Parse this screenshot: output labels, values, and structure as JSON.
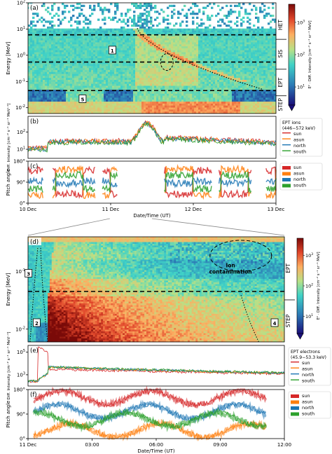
{
  "chart_data": [
    {
      "panel": "(a)",
      "type": "heatmap",
      "xlabel": "",
      "ylabel": "Energy [MeV]",
      "y_scale": "log",
      "ylim": [
        0.006,
        100
      ],
      "yticks": [
        "10^{-2}",
        "10^{-1}",
        "10^{0}",
        "10^{1}",
        "10^{2}"
      ],
      "instruments": [
        "HET",
        "SIS",
        "EPT",
        "STEP"
      ],
      "colorbar": {
        "label": "E² · Diff. Intensity [cm⁻² s⁻¹ sr⁻¹ MeV]",
        "ticks": [
          "10^{1}",
          "10^{2}",
          "10^{3}"
        ],
        "scale": "log"
      },
      "dashed_lines_MeV": [
        6.0,
        0.55,
        0.045
      ],
      "annotations": [
        "1",
        "5"
      ]
    },
    {
      "panel": "(b)",
      "type": "line",
      "ylabel": "Diff. Intensity [cm⁻² s⁻¹ sr⁻¹ MeV⁻¹]",
      "y_scale": "log",
      "ylim": [
        3,
        800
      ],
      "yticks": [
        "10^{1}",
        "10^{2}"
      ],
      "legend_title": [
        "EPT ions",
        "(446−572 keV)"
      ],
      "legend_position": "right",
      "series": [
        {
          "name": "sun",
          "color": "#d62728"
        },
        {
          "name": "asun",
          "color": "#ff7f0e"
        },
        {
          "name": "north",
          "color": "#1f77b4"
        },
        {
          "name": "south",
          "color": "#2ca02c"
        }
      ]
    },
    {
      "panel": "(c)",
      "type": "line",
      "ylabel": "Pitch angle",
      "ylim": [
        0,
        180
      ],
      "yticks": [
        "0°",
        "90°",
        "180°"
      ],
      "xlabel": "Date/Time (UT)",
      "xticks": [
        "10 Dec",
        "11 Dec",
        "12 Dec",
        "13 Dec"
      ],
      "series": [
        {
          "name": "sun",
          "color": "#d62728"
        },
        {
          "name": "asun",
          "color": "#ff7f0e"
        },
        {
          "name": "north",
          "color": "#1f77b4"
        },
        {
          "name": "south",
          "color": "#2ca02c"
        }
      ]
    },
    {
      "panel": "(d)",
      "type": "heatmap",
      "ylabel": "Energy [MeV]",
      "y_scale": "log",
      "ylim": [
        0.006,
        0.4
      ],
      "yticks": [
        "10^{-2}",
        "10^{-1}"
      ],
      "instruments": [
        "EPT",
        "STEP"
      ],
      "colorbar": {
        "label": "E² · Diff. Intensity [cm⁻² s⁻¹ sr⁻¹ MeV]",
        "ticks": [
          "10^{1}",
          "10^{2}",
          "10^{3}"
        ],
        "scale": "log"
      },
      "dashed_lines_MeV": [
        0.034
      ],
      "annotations": [
        "2",
        "3",
        "4",
        "Ion",
        "contamination"
      ]
    },
    {
      "panel": "(e)",
      "type": "line",
      "ylabel": "Diff. Intensity [cm⁻² s⁻¹ sr⁻¹ MeV⁻¹]",
      "y_scale": "log",
      "ylim": [
        100,
        400000
      ],
      "yticks": [
        "10^{3}",
        "10^{5}"
      ],
      "legend_title": [
        "EPT electrons",
        "(45.9−53.3 keV)"
      ],
      "legend_position": "right",
      "series": [
        {
          "name": "sun",
          "color": "#d62728"
        },
        {
          "name": "asun",
          "color": "#ff7f0e"
        },
        {
          "name": "north",
          "color": "#1f77b4"
        },
        {
          "name": "south",
          "color": "#2ca02c"
        }
      ]
    },
    {
      "panel": "(f)",
      "type": "line",
      "ylabel": "Pitch angle",
      "ylim": [
        0,
        180
      ],
      "yticks": [
        "0°",
        "90°",
        "180°"
      ],
      "xlabel": "Date/Time (UT)",
      "xticks": [
        "11 Dec",
        "03:00",
        "06:00",
        "09:00",
        "12:00"
      ],
      "series": [
        {
          "name": "sun",
          "color": "#d62728"
        },
        {
          "name": "asun",
          "color": "#ff7f0e"
        },
        {
          "name": "north",
          "color": "#1f77b4"
        },
        {
          "name": "south",
          "color": "#2ca02c"
        }
      ]
    }
  ]
}
